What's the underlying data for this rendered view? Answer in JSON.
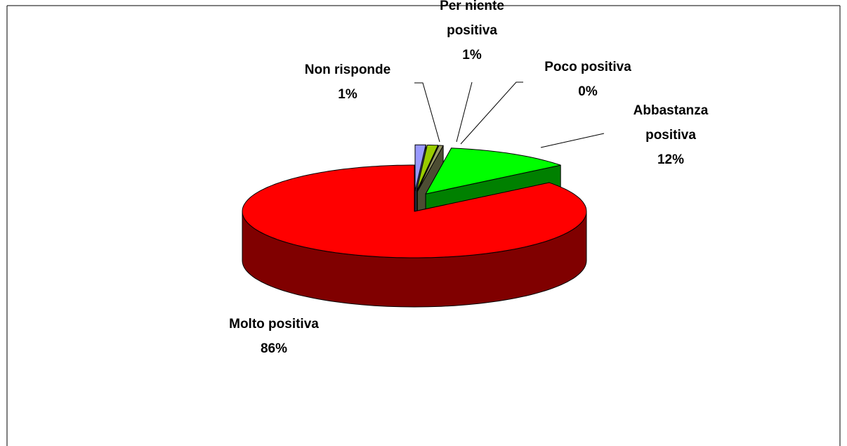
{
  "chart_data": {
    "type": "pie3d",
    "categories": [
      "Non risponde",
      "Per niente positiva",
      "Poco positiva",
      "Abbastanza positiva",
      "Molto positiva"
    ],
    "values": [
      1,
      1,
      0.4,
      12,
      86
    ],
    "value_labels": [
      "1%",
      "1%",
      "0%",
      "12%",
      "86%"
    ],
    "colors": [
      "#9999ff",
      "#99cc00",
      "#999966",
      "#00ff00",
      "#ff0000"
    ],
    "exploded": [
      true,
      true,
      true,
      true,
      false
    ]
  }
}
